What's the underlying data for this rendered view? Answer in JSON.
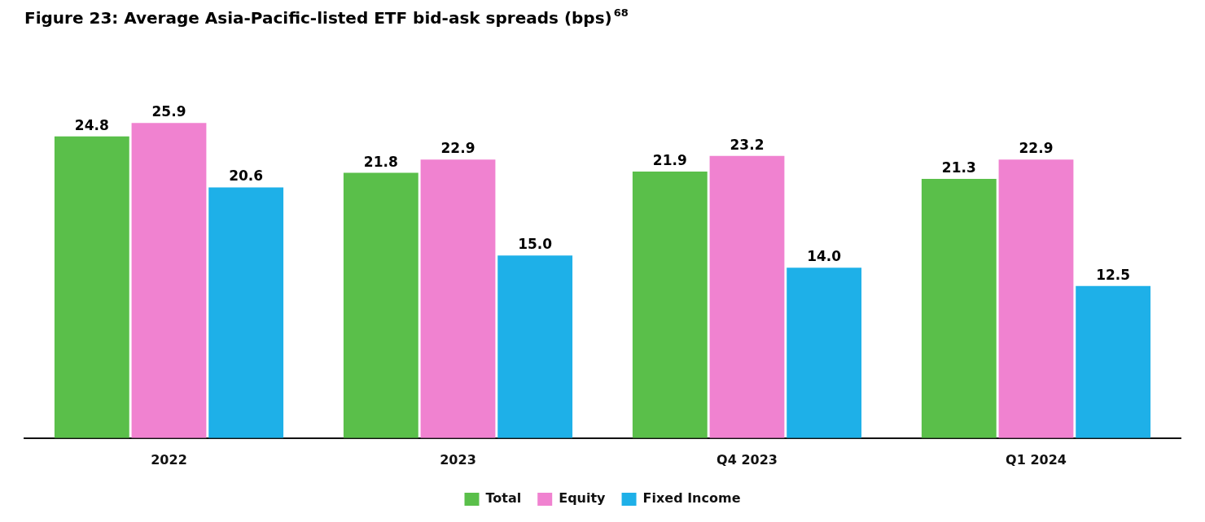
{
  "chart_data": {
    "type": "bar",
    "title": "Figure 23: Average Asia-Pacific-listed ETF bid-ask spreads (bps)",
    "annotations": [
      "68"
    ],
    "categories": [
      "2022",
      "2023",
      "Q4 2023",
      "Q1 2024"
    ],
    "series": [
      {
        "name": "Total",
        "color": "#5abf4a",
        "values": [
          24.8,
          21.8,
          21.9,
          21.3
        ],
        "value_labels": [
          "24.8",
          "21.8",
          "21.9",
          "21.3"
        ]
      },
      {
        "name": "Equity",
        "color": "#f082d0",
        "values": [
          25.9,
          22.9,
          23.2,
          22.9
        ],
        "value_labels": [
          "25.9",
          "22.9",
          "23.2",
          "22.9"
        ]
      },
      {
        "name": "Fixed Income",
        "color": "#1eb0e8",
        "values": [
          20.6,
          15.0,
          14.0,
          12.5
        ],
        "value_labels": [
          "20.6",
          "15.0",
          "14.0",
          "12.5"
        ]
      }
    ],
    "ylim": [
      0,
      32
    ],
    "grid": false,
    "legend": "bottom",
    "data_labels": true,
    "tick_labels": "x"
  }
}
